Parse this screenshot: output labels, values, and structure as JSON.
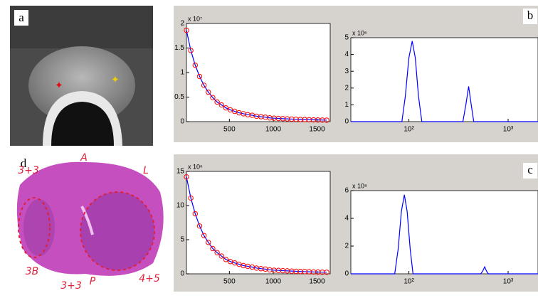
{
  "panels": {
    "a": "a",
    "b": "b",
    "c": "c",
    "d": "d"
  },
  "annotations": [
    "A",
    "L",
    "3+3",
    "3B",
    "3+3",
    "P",
    "4+5"
  ],
  "chart_data": [
    {
      "type": "line",
      "multiplier": "x 10⁷",
      "xlim": [
        10,
        1650
      ],
      "ylim": [
        0,
        2
      ],
      "xticks": [
        500,
        1000,
        1500
      ],
      "yticks": [
        0,
        0.5,
        1,
        1.5,
        2
      ],
      "x": [
        10,
        60,
        110,
        160,
        210,
        260,
        310,
        360,
        410,
        460,
        510,
        560,
        610,
        660,
        710,
        760,
        810,
        860,
        910,
        960,
        1010,
        1060,
        1110,
        1160,
        1210,
        1260,
        1310,
        1360,
        1410,
        1460,
        1510,
        1560,
        1610
      ],
      "series": [
        {
          "color": "#0000ff",
          "marker_color": "#ff0000",
          "values": [
            1.86,
            1.45,
            1.15,
            0.92,
            0.74,
            0.6,
            0.49,
            0.4,
            0.34,
            0.28,
            0.24,
            0.21,
            0.18,
            0.16,
            0.14,
            0.13,
            0.11,
            0.1,
            0.09,
            0.076,
            0.07,
            0.065,
            0.06,
            0.056,
            0.052,
            0.048,
            0.045,
            0.042,
            0.039,
            0.036,
            0.034,
            0.032,
            0.03
          ]
        }
      ]
    },
    {
      "type": "line",
      "multiplier": "x 10⁶",
      "xscale": "log",
      "xlim": [
        26,
        2000
      ],
      "ylim": [
        0,
        5
      ],
      "xticks": [
        {
          "value": 100,
          "label": "10²"
        },
        {
          "value": 1000,
          "label": "10³"
        }
      ],
      "yticks": [
        0,
        1,
        2,
        3,
        4,
        5
      ],
      "x": [
        26,
        85,
        92,
        100,
        108,
        116,
        125,
        135,
        350,
        375,
        400,
        425,
        450,
        2000
      ],
      "series": [
        {
          "color": "#0000ff",
          "values": [
            0,
            0,
            1.5,
            3.8,
            4.8,
            3.8,
            1.5,
            0,
            0,
            1,
            2.1,
            1,
            0,
            0
          ]
        }
      ]
    },
    {
      "type": "line",
      "multiplier": "x 10⁶",
      "xlim": [
        10,
        1650
      ],
      "ylim": [
        0,
        15
      ],
      "xticks": [
        500,
        1000,
        1500
      ],
      "yticks": [
        0,
        5,
        10,
        15
      ],
      "x": [
        10,
        60,
        110,
        160,
        210,
        260,
        310,
        360,
        410,
        460,
        510,
        560,
        610,
        660,
        710,
        760,
        810,
        860,
        910,
        960,
        1010,
        1060,
        1110,
        1160,
        1210,
        1260,
        1310,
        1360,
        1410,
        1460,
        1510,
        1560,
        1610
      ],
      "series": [
        {
          "color": "#0000ff",
          "marker_color": "#ff0000",
          "values": [
            14.2,
            11.1,
            8.8,
            7,
            5.6,
            4.6,
            3.7,
            3.1,
            2.6,
            2.1,
            1.8,
            1.6,
            1.4,
            1.2,
            1.1,
            0.99,
            0.84,
            0.76,
            0.69,
            0.58,
            0.53,
            0.5,
            0.46,
            0.43,
            0.4,
            0.37,
            0.34,
            0.32,
            0.3,
            0.27,
            0.26,
            0.24,
            0.23
          ]
        }
      ]
    },
    {
      "type": "line",
      "multiplier": "x 10⁸",
      "xscale": "log",
      "xlim": [
        26,
        2000
      ],
      "ylim": [
        0,
        6
      ],
      "xticks": [
        {
          "value": 100,
          "label": "10²"
        },
        {
          "value": 1000,
          "label": "10³"
        }
      ],
      "yticks": [
        0,
        2,
        4,
        6
      ],
      "x": [
        26,
        72,
        78,
        84,
        90,
        96,
        103,
        110,
        530,
        555,
        580,
        605,
        630,
        2000
      ],
      "series": [
        {
          "color": "#0000ff",
          "values": [
            0,
            0,
            1.8,
            4.5,
            5.7,
            4.5,
            1.8,
            0,
            0,
            0.2,
            0.5,
            0.2,
            0,
            0
          ]
        }
      ]
    }
  ]
}
